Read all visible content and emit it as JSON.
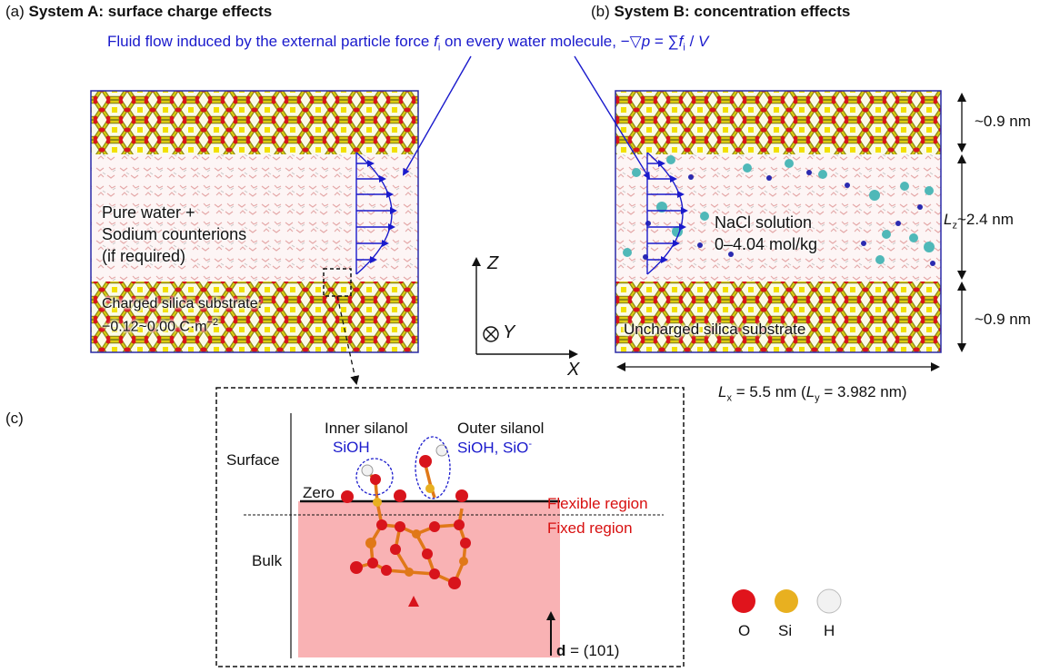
{
  "panel_a": {
    "tag": "(a)",
    "title": "System A: surface charge effects",
    "liquid_lines": [
      "Pure water +",
      "Sodium counterions",
      "(if required)"
    ],
    "substrate_line1": "Charged silica substrate:",
    "substrate_line2_main": "−0.12~0.00 C·m",
    "substrate_line2_sup": "−2"
  },
  "panel_b": {
    "tag": "(b)",
    "title": "System B: concentration effects",
    "solution_line1": "NaCl solution",
    "solution_line2": "0–4.04 mol/kg",
    "substrate_label": "Uncharged silica substrate",
    "dim_top": "~0.9 nm",
    "dim_mid": "~2.4 nm",
    "dim_bottom": "~0.9 nm",
    "lz": "L",
    "lz_sub": "z",
    "lx": "L",
    "lx_sub": "x",
    "lx_value": " = 5.5 nm  (",
    "ly": "L",
    "ly_sub": "y",
    "ly_value": " = 3.982 nm)"
  },
  "flow_label": {
    "part1": "Fluid flow induced by the external particle force ",
    "f": "f",
    "f_sub": "i",
    "part2": " on every water molecule, −",
    "nabla": "▽",
    "p": "p",
    "part3": " = ∑",
    "f2": "f",
    "f2_sub": "i",
    "part4": " / ",
    "V": "V"
  },
  "axes": {
    "z": "Z",
    "y": "Y",
    "x": "X"
  },
  "panel_c": {
    "tag": "(c)",
    "surface": "Surface",
    "bulk": "Bulk",
    "zero": "Zero",
    "inner_title": "Inner silanol",
    "inner_species": "SiOH",
    "outer_title": "Outer silanol",
    "outer_species_main": "SiOH, SiO",
    "outer_species_sup": "-",
    "flexible": "Flexible region",
    "fixed": "Fixed region",
    "direction_bold": "d",
    "direction_value": " = (101)"
  },
  "legend": {
    "items": [
      {
        "label": "O",
        "color": "#e0141c"
      },
      {
        "label": "Si",
        "color": "#e8b020"
      },
      {
        "label": "H",
        "color": "#f2f2f2"
      }
    ]
  },
  "colors": {
    "accent_blue": "#1a1acc",
    "region_red": "#d81010",
    "bulk_fill": "#f9b2b4",
    "silica_yellow": "#d8c810",
    "silica_olive": "#8a8a1a",
    "oxygen_red": "#d8141c"
  }
}
